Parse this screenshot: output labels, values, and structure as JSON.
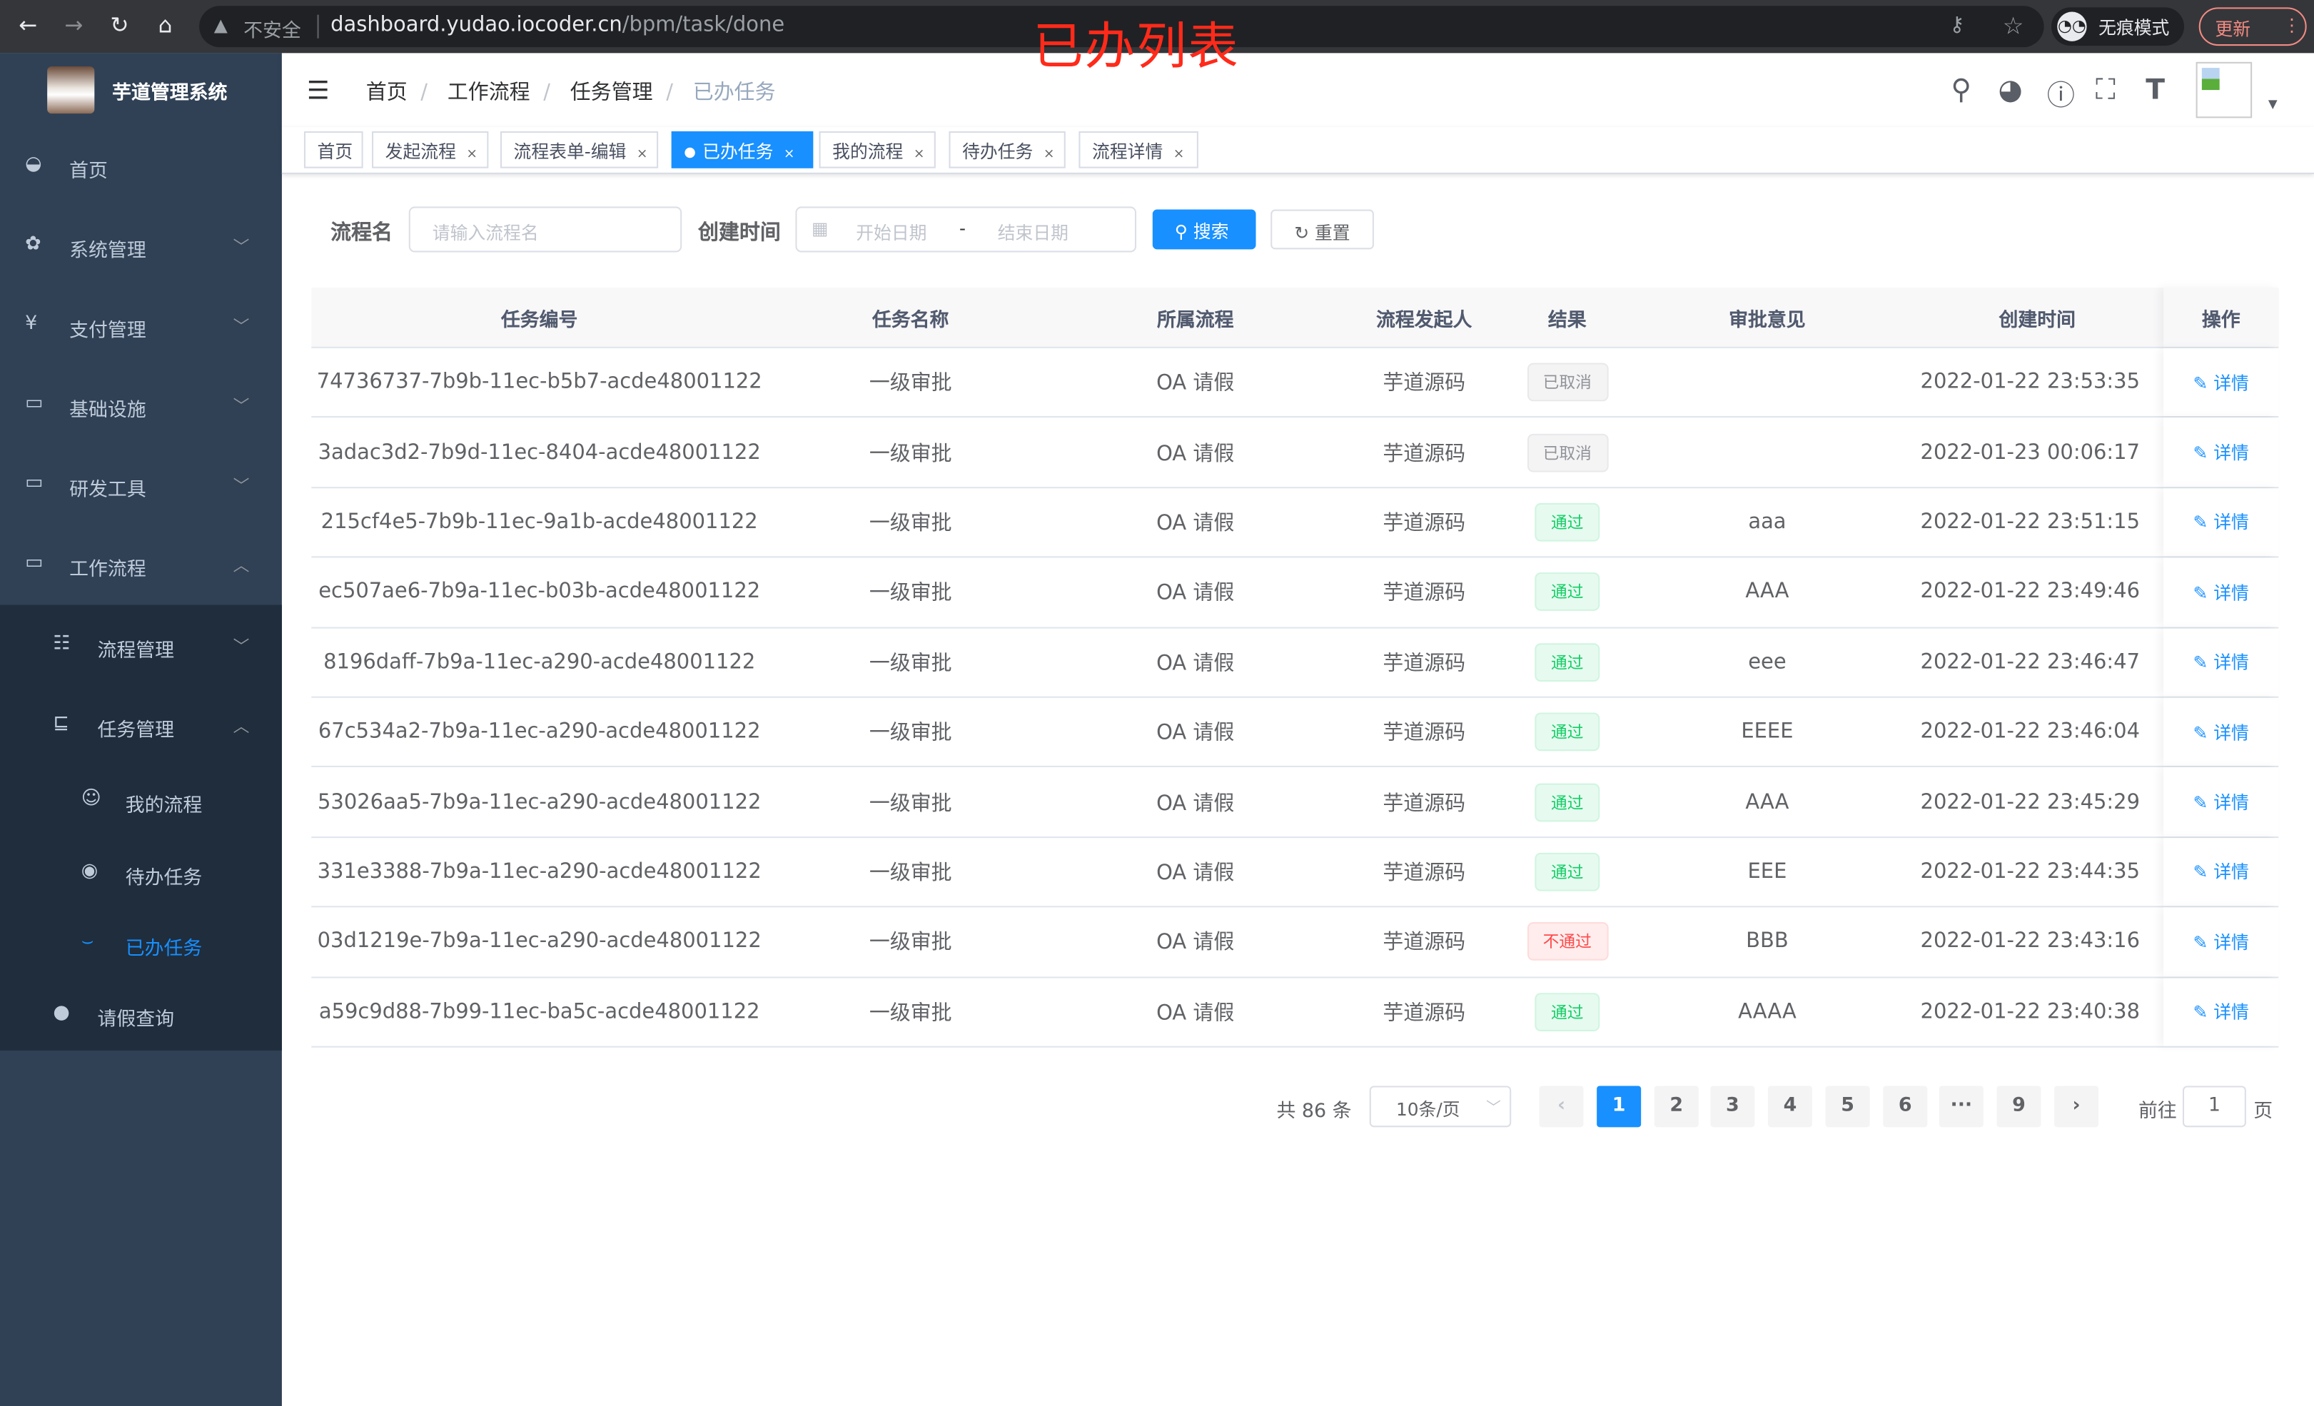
{
  "browser": {
    "insecure_label": "不安全",
    "url_host": "dashboard.yudao.iocoder.cn",
    "url_path": "/bpm/task/done",
    "incognito_label": "无痕模式",
    "update_label": "更新"
  },
  "annotation": "已办列表",
  "sidebar": {
    "title": "芋道管理系统",
    "items": [
      {
        "label": "首页",
        "icon": "dashboard-icon"
      },
      {
        "label": "系统管理",
        "icon": "gear-icon"
      },
      {
        "label": "支付管理",
        "icon": "yen-icon"
      },
      {
        "label": "基础设施",
        "icon": "monitor-icon"
      },
      {
        "label": "研发工具",
        "icon": "toolbox-icon"
      },
      {
        "label": "工作流程",
        "icon": "toolbox-icon"
      },
      {
        "label": "流程管理",
        "icon": "list-icon"
      },
      {
        "label": "任务管理",
        "icon": "task-icon"
      },
      {
        "label": "我的流程",
        "icon": "people-icon"
      },
      {
        "label": "待办任务",
        "icon": "eye-icon"
      },
      {
        "label": "已办任务",
        "icon": "eye-closed-icon"
      },
      {
        "label": "请假查询",
        "icon": "user-icon"
      }
    ]
  },
  "breadcrumb": [
    "首页",
    "工作流程",
    "任务管理",
    "已办任务"
  ],
  "tags": [
    "首页",
    "发起流程",
    "流程表单-编辑",
    "已办任务",
    "我的流程",
    "待办任务",
    "流程详情"
  ],
  "form": {
    "name_label": "流程名",
    "name_placeholder": "请输入流程名",
    "time_label": "创建时间",
    "start_placeholder": "开始日期",
    "range_sep": "-",
    "end_placeholder": "结束日期",
    "search": "搜索",
    "reset": "重置"
  },
  "table": {
    "headers": [
      "任务编号",
      "任务名称",
      "所属流程",
      "流程发起人",
      "结果",
      "审批意见",
      "创建时间",
      "操作"
    ],
    "action_label": "详情",
    "rows": [
      {
        "id": "74736737-7b9b-11ec-b5b7-acde48001122",
        "name": "一级审批",
        "process": "OA 请假",
        "starter": "芋道源码",
        "result": "已取消",
        "status": "info",
        "comment": "",
        "time": "2022-01-22 23:53:35"
      },
      {
        "id": "3adac3d2-7b9d-11ec-8404-acde48001122",
        "name": "一级审批",
        "process": "OA 请假",
        "starter": "芋道源码",
        "result": "已取消",
        "status": "info",
        "comment": "",
        "time": "2022-01-23 00:06:17"
      },
      {
        "id": "215cf4e5-7b9b-11ec-9a1b-acde48001122",
        "name": "一级审批",
        "process": "OA 请假",
        "starter": "芋道源码",
        "result": "通过",
        "status": "success",
        "comment": "aaa",
        "time": "2022-01-22 23:51:15"
      },
      {
        "id": "ec507ae6-7b9a-11ec-b03b-acde48001122",
        "name": "一级审批",
        "process": "OA 请假",
        "starter": "芋道源码",
        "result": "通过",
        "status": "success",
        "comment": "AAA",
        "time": "2022-01-22 23:49:46"
      },
      {
        "id": "8196daff-7b9a-11ec-a290-acde48001122",
        "name": "一级审批",
        "process": "OA 请假",
        "starter": "芋道源码",
        "result": "通过",
        "status": "success",
        "comment": "eee",
        "time": "2022-01-22 23:46:47"
      },
      {
        "id": "67c534a2-7b9a-11ec-a290-acde48001122",
        "name": "一级审批",
        "process": "OA 请假",
        "starter": "芋道源码",
        "result": "通过",
        "status": "success",
        "comment": "EEEE",
        "time": "2022-01-22 23:46:04"
      },
      {
        "id": "53026aa5-7b9a-11ec-a290-acde48001122",
        "name": "一级审批",
        "process": "OA 请假",
        "starter": "芋道源码",
        "result": "通过",
        "status": "success",
        "comment": "AAA",
        "time": "2022-01-22 23:45:29"
      },
      {
        "id": "331e3388-7b9a-11ec-a290-acde48001122",
        "name": "一级审批",
        "process": "OA 请假",
        "starter": "芋道源码",
        "result": "通过",
        "status": "success",
        "comment": "EEE",
        "time": "2022-01-22 23:44:35"
      },
      {
        "id": "03d1219e-7b9a-11ec-a290-acde48001122",
        "name": "一级审批",
        "process": "OA 请假",
        "starter": "芋道源码",
        "result": "不通过",
        "status": "danger",
        "comment": "BBB",
        "time": "2022-01-22 23:43:16"
      },
      {
        "id": "a59c9d88-7b99-11ec-ba5c-acde48001122",
        "name": "一级审批",
        "process": "OA 请假",
        "starter": "芋道源码",
        "result": "通过",
        "status": "success",
        "comment": "AAAA",
        "time": "2022-01-22 23:40:38"
      }
    ]
  },
  "pagination": {
    "total_label": "共 86 条",
    "page_size": "10条/页",
    "pages": [
      "1",
      "2",
      "3",
      "4",
      "5",
      "6",
      "···",
      "9"
    ],
    "current": "1",
    "goto_label": "前往",
    "goto_value": "1",
    "page_suffix": "页"
  },
  "colors": {
    "primary": "#1890ff",
    "sidebar_bg": "#304156",
    "submenu_bg": "#1f2d3d",
    "success": "#13ce66",
    "danger": "#ff4949",
    "annotation": "#ff2a1a"
  }
}
